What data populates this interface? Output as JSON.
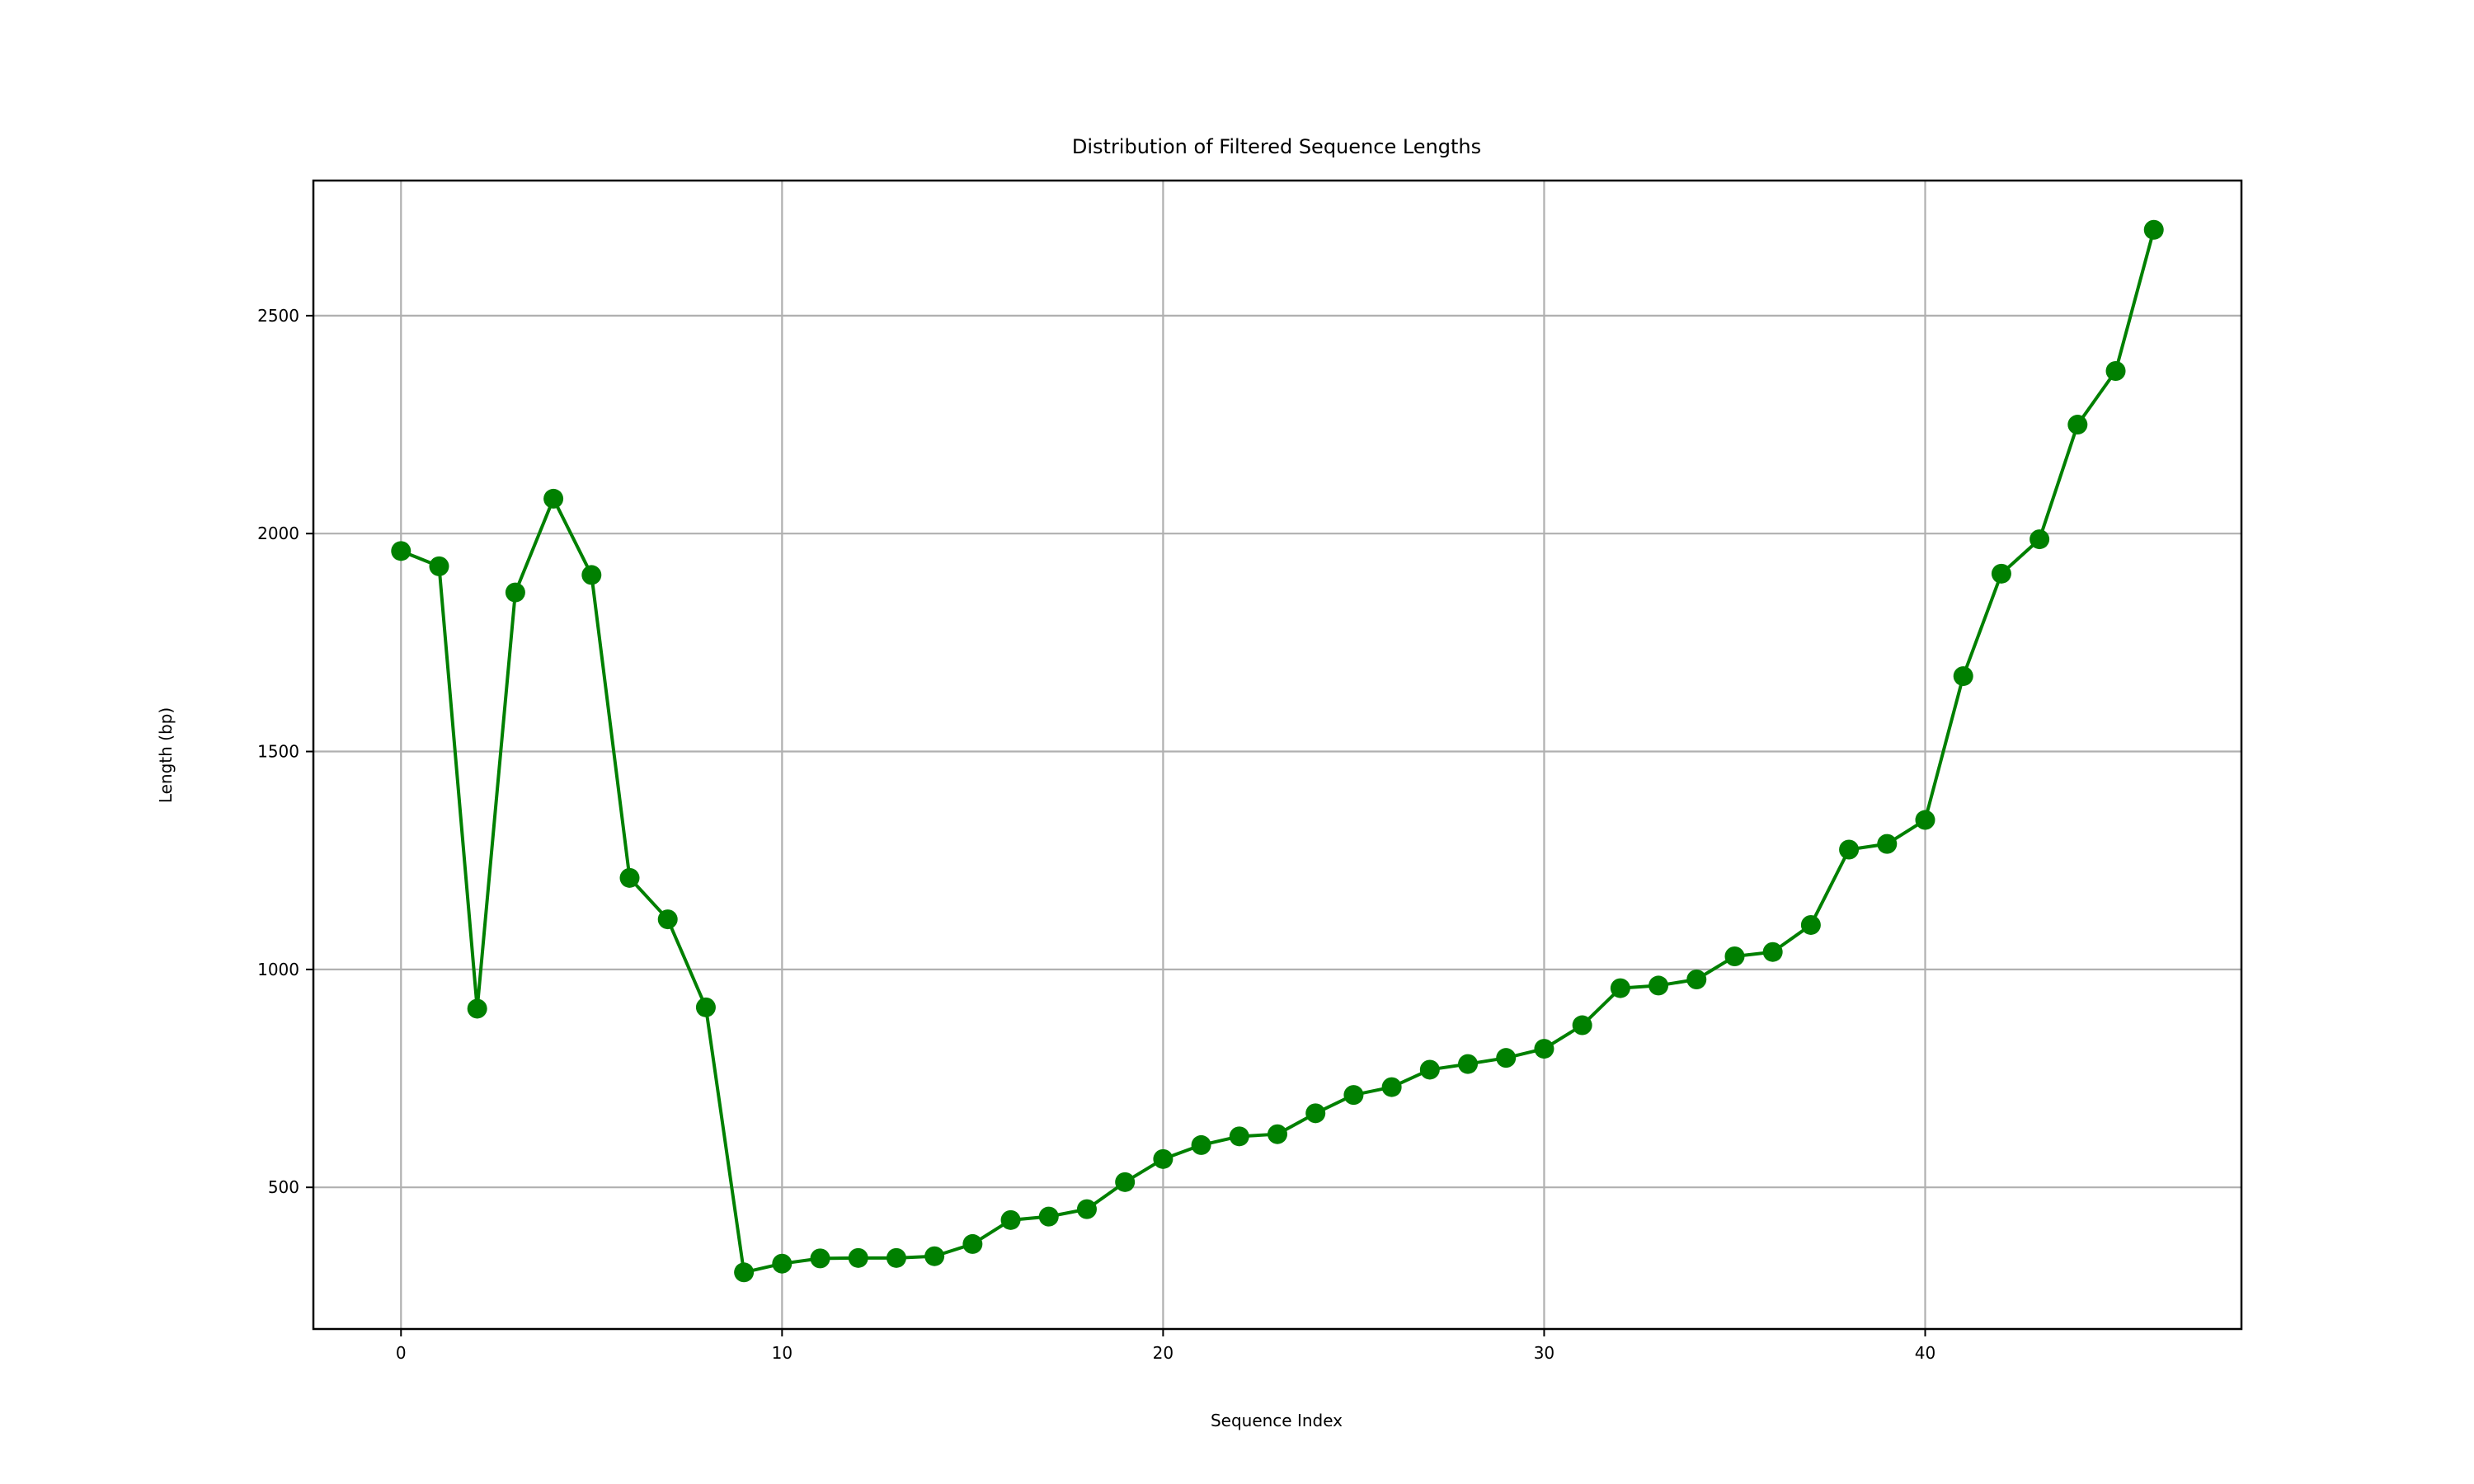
{
  "chart_data": {
    "type": "line",
    "title": "Distribution of Filtered Sequence Lengths",
    "xlabel": "Sequence Index",
    "ylabel": "Length (bp)",
    "xlim": [
      -2.3,
      48.3
    ],
    "ylim": [
      175,
      2810
    ],
    "xticks": [
      0,
      10,
      20,
      30,
      40
    ],
    "yticks": [
      500,
      1000,
      1500,
      2000,
      2500
    ],
    "grid": true,
    "line_color": "#008000",
    "marker": "circle",
    "x": [
      0,
      1,
      2,
      3,
      4,
      5,
      6,
      7,
      8,
      9,
      10,
      11,
      12,
      13,
      14,
      15,
      16,
      17,
      18,
      19,
      20,
      21,
      22,
      23,
      24,
      25,
      26,
      27,
      28,
      29,
      30,
      31,
      32,
      33,
      34,
      35,
      36,
      37,
      38,
      39,
      40,
      41,
      42,
      43,
      44,
      45,
      46
    ],
    "values": [
      1960,
      1925,
      910,
      1865,
      2080,
      1905,
      1210,
      1115,
      913,
      305,
      325,
      337,
      338,
      338,
      342,
      370,
      425,
      433,
      450,
      512,
      565,
      597,
      617,
      622,
      670,
      712,
      730,
      770,
      783,
      797,
      818,
      872,
      957,
      963,
      977,
      1030,
      1040,
      1102,
      1275,
      1288,
      1343,
      1673,
      1908,
      1987,
      2250,
      2373,
      2697
    ]
  }
}
